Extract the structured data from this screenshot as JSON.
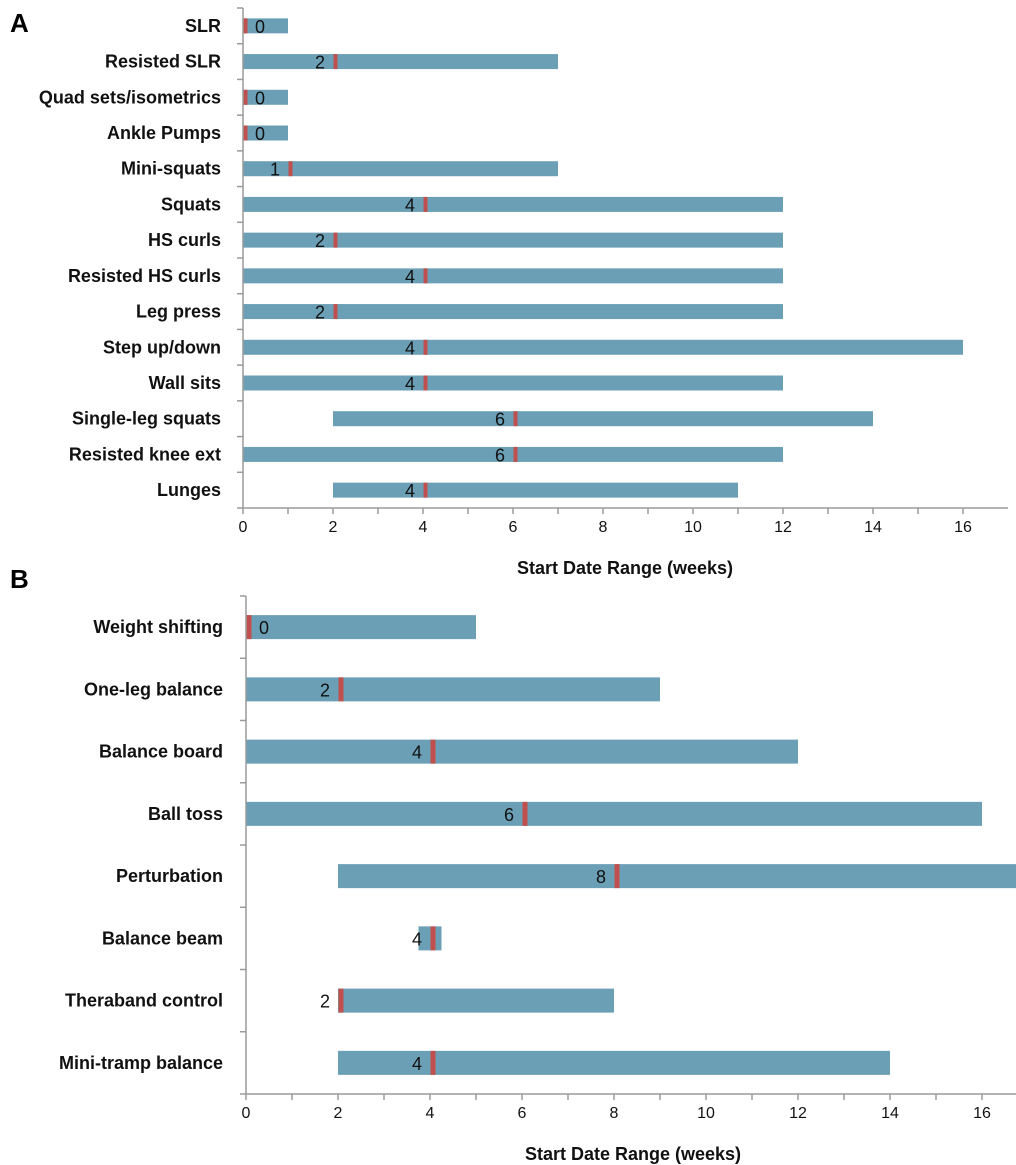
{
  "chart_data": [
    {
      "type": "bar",
      "orientation": "horizontal",
      "panel_label": "A",
      "xlabel": "Start Date Range (weeks)",
      "xlim": [
        0,
        17
      ],
      "x_ticks": [
        "0",
        "2",
        "4",
        "6",
        "8",
        "10",
        "12",
        "14",
        "16"
      ],
      "colors": {
        "range": "#6b9fb6",
        "marker": "#c0504d"
      },
      "categories": [
        "SLR",
        "Resisted SLR",
        "Quad sets/isometrics",
        "Ankle Pumps",
        "Mini-squats",
        "Squats",
        "HS curls",
        "Resisted HS curls",
        "Leg press",
        "Step up/down",
        "Wall sits",
        "Single-leg squats",
        "Resisted knee ext",
        "Lunges"
      ],
      "range_start": [
        0,
        0,
        0,
        0,
        0,
        0,
        0,
        0,
        0,
        0,
        0,
        2,
        0,
        2
      ],
      "range_end": [
        1,
        7,
        1,
        1,
        7,
        12,
        12,
        12,
        12,
        16,
        12,
        14,
        12,
        11
      ],
      "median": [
        0,
        2,
        0,
        0,
        1,
        4,
        2,
        4,
        2,
        4,
        4,
        6,
        6,
        4
      ],
      "median_labels": [
        "0",
        "2",
        "0",
        "0",
        "1",
        "4",
        "2",
        "4",
        "2",
        "4",
        "4",
        "6",
        "6",
        "4"
      ]
    },
    {
      "type": "bar",
      "orientation": "horizontal",
      "panel_label": "B",
      "xlabel": "Start Date Range (weeks)",
      "xlim": [
        0,
        16.8
      ],
      "x_ticks": [
        "0",
        "2",
        "4",
        "6",
        "8",
        "10",
        "12",
        "14",
        "16"
      ],
      "colors": {
        "range": "#6b9fb6",
        "marker": "#c0504d"
      },
      "categories": [
        "Weight shifting",
        "One-leg balance",
        "Balance board",
        "Ball toss",
        "Perturbation",
        "Balance beam",
        "Theraband control",
        "Mini-tramp balance"
      ],
      "range_start": [
        0,
        0,
        0,
        0,
        2,
        3.75,
        2,
        2
      ],
      "range_end": [
        5,
        9,
        12,
        16,
        16.8,
        4.25,
        8,
        14
      ],
      "median": [
        0,
        2,
        4,
        6,
        8,
        4,
        2,
        4
      ],
      "median_labels": [
        "0",
        "2",
        "4",
        "6",
        "8",
        "4",
        "2",
        "4"
      ]
    }
  ]
}
